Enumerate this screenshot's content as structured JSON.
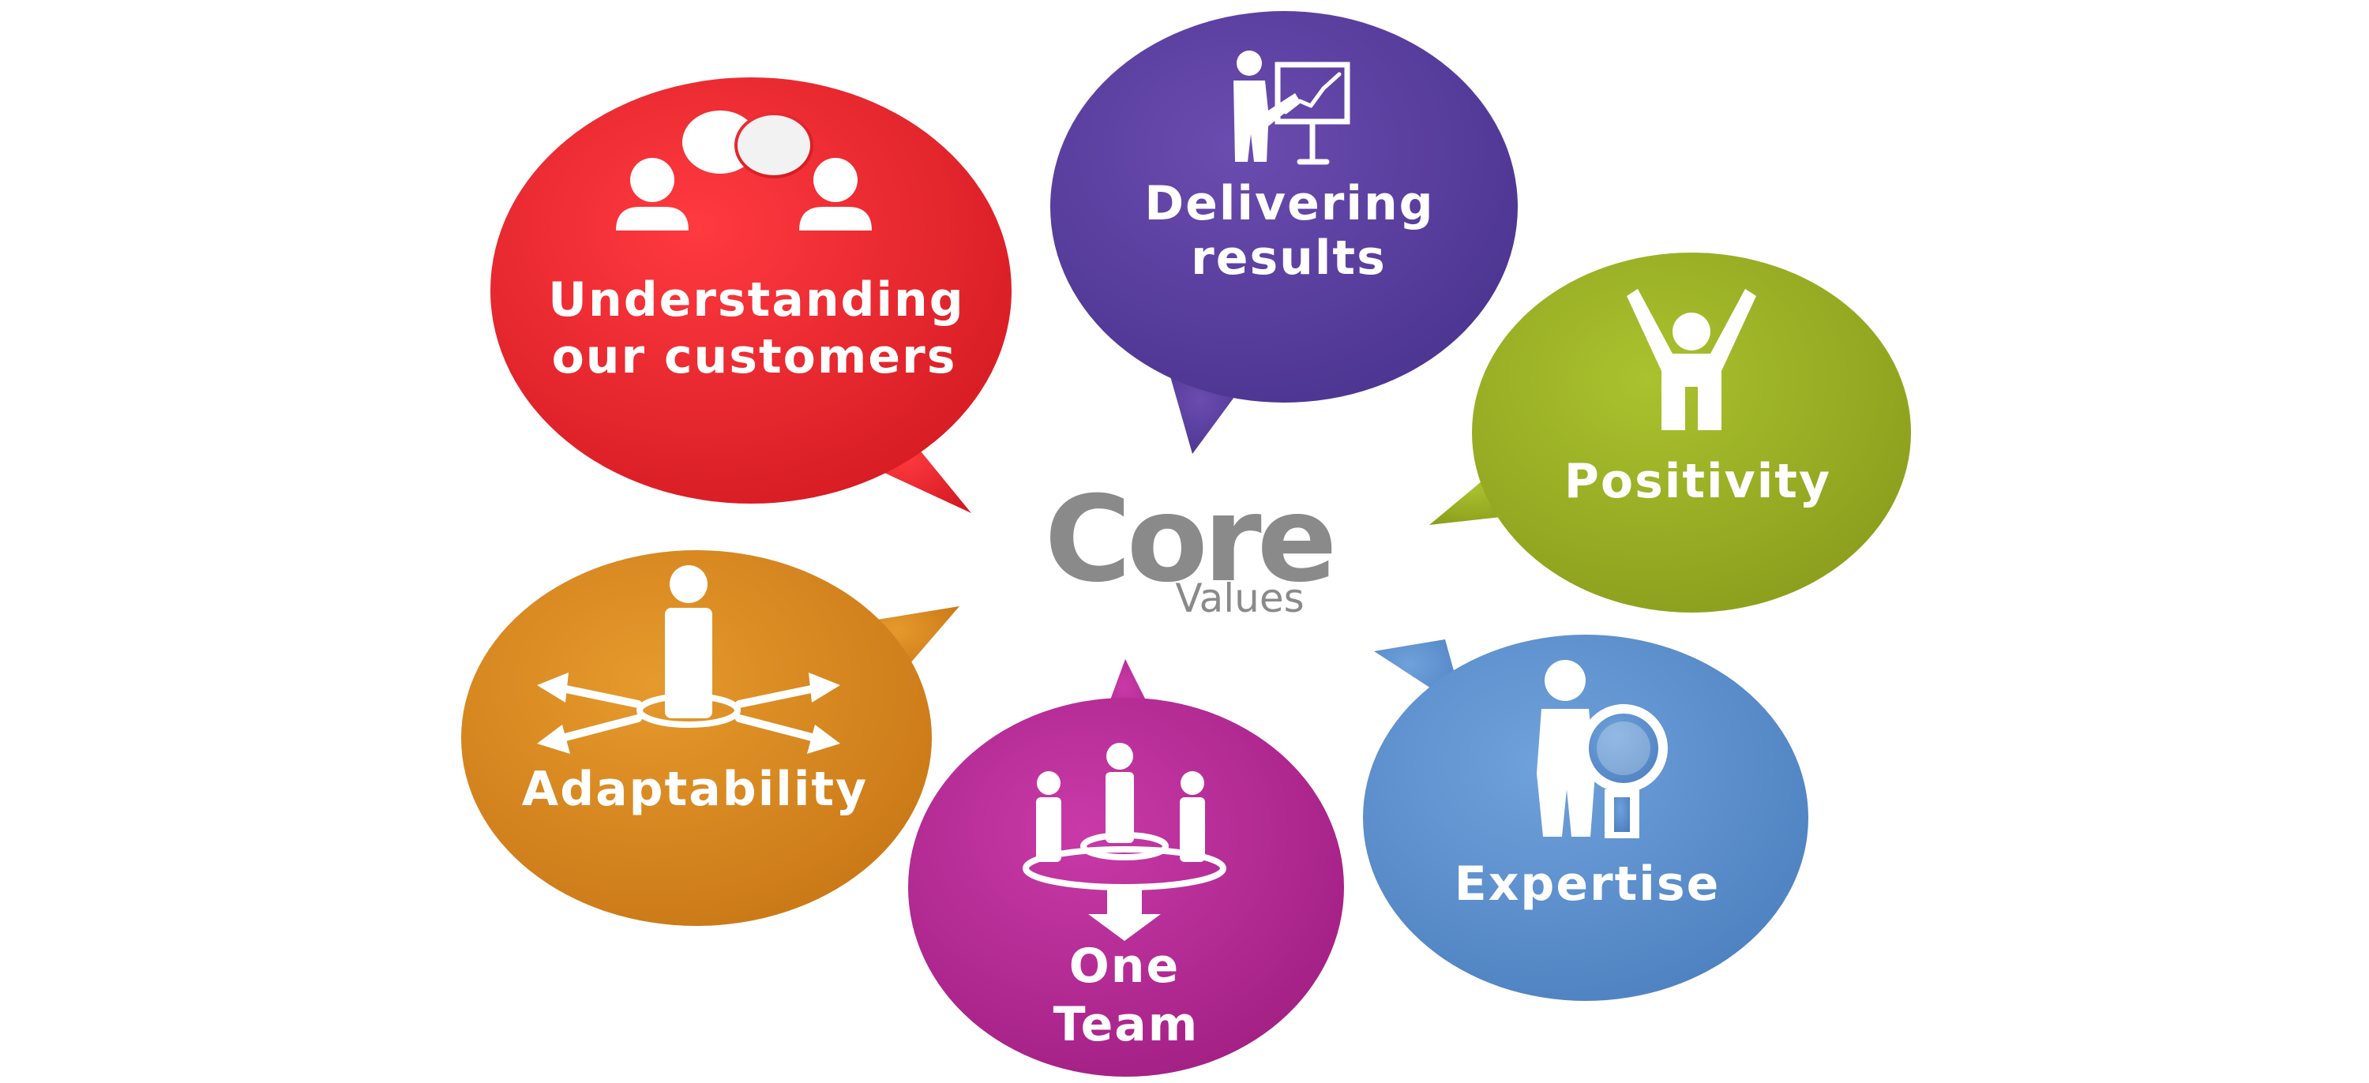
{
  "center": {
    "title": "Core",
    "subtitle": "Values"
  },
  "values": {
    "understanding": {
      "line1": "Understanding",
      "line2": "our customers",
      "icon": "conversation-icon",
      "color": "#e0202a"
    },
    "delivering": {
      "line1": "Delivering",
      "line2": "results",
      "icon": "presentation-chart-icon",
      "color": "#5a3f9e"
    },
    "positivity": {
      "line1": "Positivity",
      "icon": "person-arms-raised-icon",
      "color": "#9aae22"
    },
    "expertise": {
      "line1": "Expertise",
      "icon": "person-magnifier-icon",
      "color": "#5b8fcc"
    },
    "one_team": {
      "line1": "One",
      "line2": "Team",
      "icon": "team-converge-icon",
      "color": "#b32692"
    },
    "adaptability": {
      "line1": "Adaptability",
      "icon": "person-arrows-icon",
      "color": "#d68420"
    }
  }
}
